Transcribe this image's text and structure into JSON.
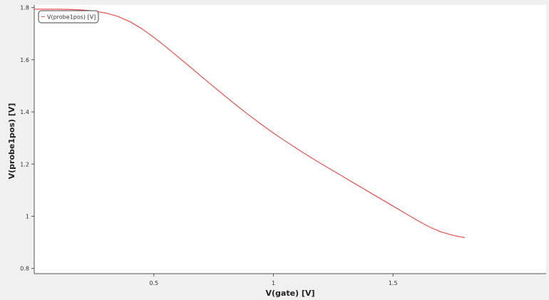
{
  "chart_data": {
    "type": "line",
    "xlabel": "V(gate) [V]",
    "ylabel": "V(probe1pos) [V]",
    "xlim": [
      0,
      2.14
    ],
    "ylim": [
      0.78,
      1.81
    ],
    "xticks": [
      {
        "value": 0.5,
        "label": "0.5"
      },
      {
        "value": 1.0,
        "label": "1"
      },
      {
        "value": 1.5,
        "label": "1.5"
      }
    ],
    "yticks": [
      {
        "value": 0.8,
        "label": "0.8"
      },
      {
        "value": 1.0,
        "label": "1"
      },
      {
        "value": 1.2,
        "label": "1.2"
      },
      {
        "value": 1.4,
        "label": "1.4"
      },
      {
        "value": 1.6,
        "label": "1.6"
      },
      {
        "value": 1.8,
        "label": "1.8"
      }
    ],
    "grid": false,
    "legend": "top-left",
    "background": "#ffffff",
    "series": [
      {
        "name": "V(probe1pos) [V]",
        "color": "#e8514e",
        "x": [
          0,
          0.05,
          0.1,
          0.15,
          0.2,
          0.25,
          0.3,
          0.35,
          0.4,
          0.45,
          0.5,
          0.55,
          0.6,
          0.65,
          0.7,
          0.75,
          0.8,
          0.85,
          0.9,
          0.95,
          1.0,
          1.05,
          1.1,
          1.15,
          1.2,
          1.25,
          1.3,
          1.35,
          1.4,
          1.45,
          1.5,
          1.55,
          1.6,
          1.65,
          1.7,
          1.75,
          1.8
        ],
        "y": [
          1.794,
          1.794,
          1.794,
          1.793,
          1.791,
          1.787,
          1.779,
          1.766,
          1.746,
          1.719,
          1.686,
          1.65,
          1.612,
          1.574,
          1.535,
          1.497,
          1.459,
          1.422,
          1.386,
          1.352,
          1.319,
          1.288,
          1.258,
          1.229,
          1.201,
          1.174,
          1.147,
          1.12,
          1.093,
          1.066,
          1.039,
          1.012,
          0.985,
          0.96,
          0.94,
          0.927,
          0.918
        ]
      }
    ]
  }
}
